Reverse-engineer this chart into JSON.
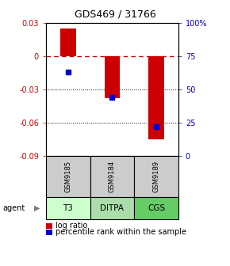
{
  "title": "GDS469 / 31766",
  "categories": [
    "GSM9185",
    "GSM9184",
    "GSM9189"
  ],
  "agents": [
    "T3",
    "DITPA",
    "CGS"
  ],
  "log_ratios": [
    0.025,
    -0.038,
    -0.075
  ],
  "percentile_ranks": [
    63,
    44,
    22
  ],
  "ylim": [
    -0.09,
    0.03
  ],
  "left_yticks": [
    0.03,
    0,
    -0.03,
    -0.06,
    -0.09
  ],
  "right_yticks": [
    100,
    75,
    50,
    25,
    0
  ],
  "left_color": "#cc0000",
  "right_color": "#0000cc",
  "bar_color": "#cc0000",
  "dot_color": "#0000cc",
  "hline_color": "#cc0000",
  "agent_colors": [
    "#ccffcc",
    "#aaddaa",
    "#66cc66"
  ],
  "gsm_bg": "#cccccc",
  "bar_width": 0.35,
  "title_fontsize": 9,
  "tick_fontsize": 7,
  "label_fontsize": 7
}
